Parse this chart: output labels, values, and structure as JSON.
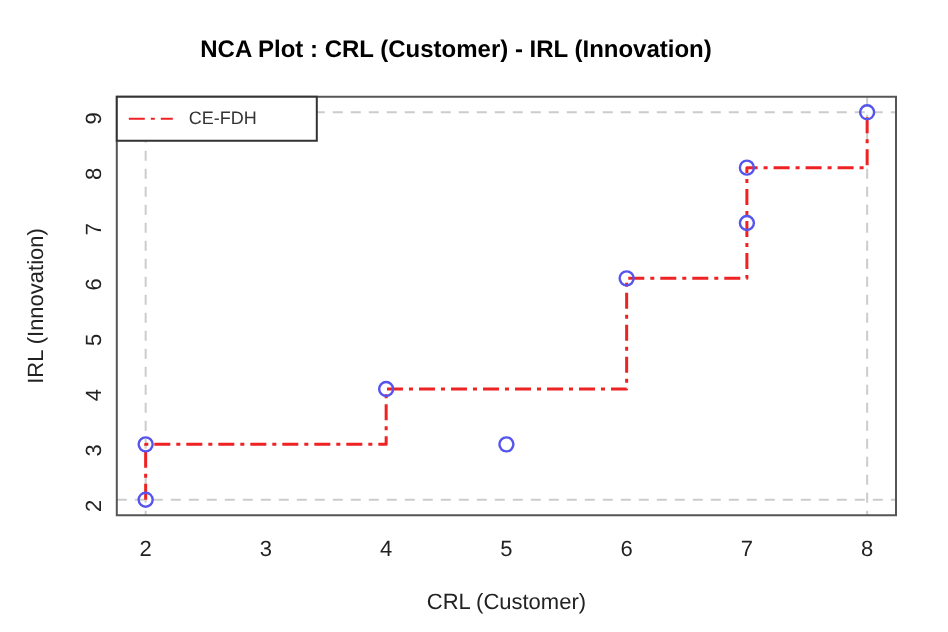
{
  "chart_data": {
    "type": "scatter",
    "title": "NCA Plot : CRL (Customer) - IRL (Innovation)",
    "xlabel": "CRL (Customer)",
    "ylabel": "IRL (Innovation)",
    "x": [
      2,
      2,
      4,
      5,
      6,
      7,
      7,
      8
    ],
    "series": [
      {
        "type": "scatter",
        "color": "#5555ee",
        "values": [
          2,
          3,
          4,
          3,
          6,
          7,
          8,
          9
        ],
        "marker": "circle"
      },
      {
        "type": "step",
        "name": "CE-FDH",
        "color": "#ee2222",
        "x": [
          2,
          2,
          4,
          6,
          7,
          8
        ],
        "values": [
          2,
          3,
          4,
          6,
          8,
          9
        ],
        "line_style": "dashed",
        "marker": "none"
      }
    ],
    "xlim": [
      1.76,
      8.24
    ],
    "ylim": [
      1.72,
      9.28
    ],
    "xticks": [
      2,
      3,
      4,
      5,
      6,
      7,
      8
    ],
    "yticks": [
      2,
      3,
      4,
      5,
      6,
      7,
      8,
      9
    ],
    "ref_lines": [
      {
        "axis": "x",
        "value": 2,
        "color": "#cccccc",
        "line_style": "dashed"
      },
      {
        "axis": "x",
        "value": 8,
        "color": "#cccccc",
        "line_style": "dashed"
      },
      {
        "axis": "y",
        "value": 2,
        "color": "#cccccc",
        "line_style": "dashed"
      },
      {
        "axis": "y",
        "value": 9,
        "color": "#cccccc",
        "line_style": "dashed"
      }
    ],
    "grid": false,
    "legend": "top left"
  }
}
